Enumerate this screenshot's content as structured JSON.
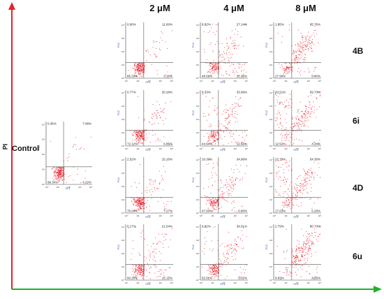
{
  "chart_data": {
    "type": "scatter",
    "title": "",
    "column_headers": [
      "2 μM",
      "4 μM",
      "8 μM"
    ],
    "row_labels": [
      "4B",
      "6i",
      "4D",
      "6u"
    ],
    "control_label": "Control",
    "y_axis_label": "PI",
    "x_axis_label": "",
    "panel_x_label": "FL1",
    "panel_y_label": "FL2",
    "tick_labels": [
      "10⁰",
      "10¹",
      "10²",
      "10³",
      "10⁴"
    ],
    "marker_color": "#e8202a",
    "panels": [
      {
        "id": "control",
        "row": "Control",
        "concentration": "",
        "ul": "0.36%",
        "ur": "7.08%",
        "ll": "88.34%",
        "lr": "4.22%"
      },
      {
        "id": "4b-2",
        "row": "4B",
        "concentration": "2 μM",
        "ul": "0.00%",
        "ur": "11.60%",
        "ll": "85.33%",
        "lr": "3.16%"
      },
      {
        "id": "4b-4",
        "row": "4B",
        "concentration": "4 μM",
        "ul": "8.92%",
        "ur": "27.14%",
        "ll": "48.59%",
        "lr": "15.35%"
      },
      {
        "id": "4b-8",
        "row": "4B",
        "concentration": "8 μM",
        "ul": "1.85%",
        "ur": "65.76%",
        "ll": "27.90%",
        "lr": "5.40%"
      },
      {
        "id": "6i-2",
        "row": "6i",
        "concentration": "2 μM",
        "ul": "0.77%",
        "ur": "20.28%",
        "ll": "72.12%",
        "lr": "6.85%"
      },
      {
        "id": "6i-4",
        "row": "6i",
        "concentration": "4 μM",
        "ul": "9.33%",
        "ur": "33.08%",
        "ll": "44.94%",
        "lr": "12.66%"
      },
      {
        "id": "6i-8",
        "row": "6i",
        "concentration": "8 μM",
        "ul": "23.51%",
        "ur": "59.73%",
        "ll": "12.52%",
        "lr": "4.24%"
      },
      {
        "id": "4d-2",
        "row": "4D",
        "concentration": "2 μM",
        "ul": "2.52%",
        "ur": "15.16%",
        "ll": "75.04%",
        "lr": "7.27%"
      },
      {
        "id": "4d-4",
        "row": "4D",
        "concentration": "4 μM",
        "ul": "10.30%",
        "ur": "34.96%",
        "ll": "47.93%",
        "lr": "6.80%"
      },
      {
        "id": "4d-8",
        "row": "4D",
        "concentration": "8 μM",
        "ul": "22.79%",
        "ur": "54.30%",
        "ll": "17.63%",
        "lr": "5.28%"
      },
      {
        "id": "6u-2",
        "row": "6u",
        "concentration": "2 μM",
        "ul": "5.17%",
        "ur": "21.54%",
        "ll": "60.20%",
        "lr": "12.12%"
      },
      {
        "id": "6u-4",
        "row": "6u",
        "concentration": "4 μM",
        "ul": "6.92%",
        "ur": "34.01%",
        "ll": "52.51%",
        "lr": "5.32%"
      },
      {
        "id": "6u-8",
        "row": "6u",
        "concentration": "8 μM",
        "ul": "2.79%",
        "ur": "80.73%",
        "ll": "8.83%",
        "lr": "7.65%"
      }
    ]
  }
}
